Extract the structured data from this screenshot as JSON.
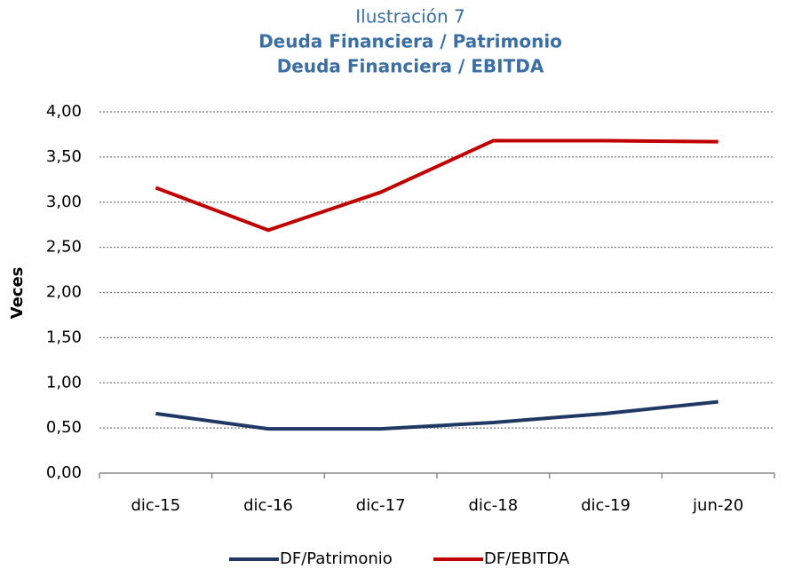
{
  "chart_data": {
    "type": "line",
    "title": "Ilustración 7",
    "subtitle": [
      "Deuda Financiera / Patrimonio",
      "Deuda Financiera / EBITDA"
    ],
    "y_label": "Veces",
    "categories": [
      "dic-15",
      "dic-16",
      "dic-17",
      "dic-18",
      "dic-19",
      "jun-20"
    ],
    "series": [
      {
        "name": "DF/Patrimonio",
        "color": "#1f3864",
        "values": [
          0.66,
          0.49,
          0.49,
          0.56,
          0.66,
          0.79
        ]
      },
      {
        "name": "DF/EBITDA",
        "color": "#c00000",
        "values": [
          3.16,
          2.69,
          3.11,
          3.68,
          3.68,
          3.67
        ]
      }
    ],
    "ylim": [
      0,
      4
    ],
    "yticks": [
      {
        "value": 0,
        "label": "0,00"
      },
      {
        "value": 0.5,
        "label": "0,50"
      },
      {
        "value": 1,
        "label": "1,00"
      },
      {
        "value": 1.5,
        "label": "1,50"
      },
      {
        "value": 2,
        "label": "2,00"
      },
      {
        "value": 2.5,
        "label": "2,50"
      },
      {
        "value": 3,
        "label": "3,00"
      },
      {
        "value": 3.5,
        "label": "3,50"
      },
      {
        "value": 4,
        "label": "4,00"
      }
    ],
    "grid": true,
    "legend": "bottom"
  }
}
